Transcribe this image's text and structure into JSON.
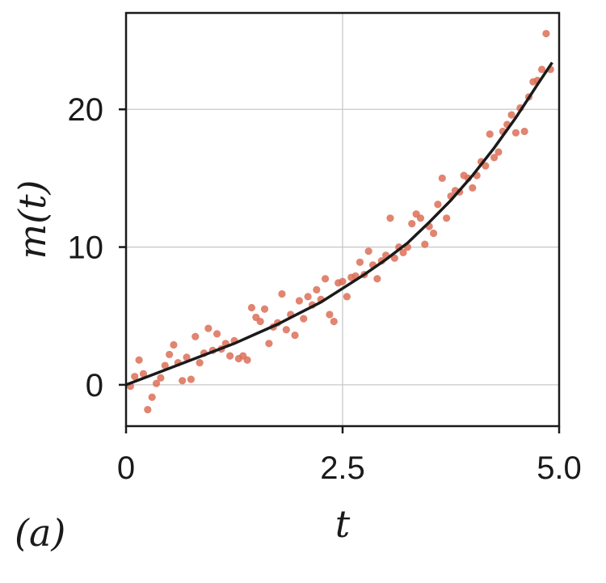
{
  "panel_label": "(a)",
  "chart_data": {
    "type": "scatter",
    "xlabel": "t",
    "ylabel": "m(t)",
    "xlim": [
      0,
      5.0
    ],
    "ylim": [
      -3,
      27
    ],
    "xticks": [
      0,
      2.5,
      5.0
    ],
    "xtick_labels": [
      "0",
      "2.5",
      "5.0"
    ],
    "yticks": [
      0,
      10,
      20
    ],
    "ytick_labels": [
      "0",
      "10",
      "20"
    ],
    "grid": true,
    "colors": {
      "points": "#dc6e57",
      "fit": "#1a1a1a"
    },
    "series": [
      {
        "type": "scatter",
        "x": [
          0.05,
          0.1,
          0.15,
          0.2,
          0.25,
          0.3,
          0.35,
          0.4,
          0.45,
          0.5,
          0.55,
          0.6,
          0.65,
          0.7,
          0.75,
          0.8,
          0.85,
          0.9,
          0.95,
          1.0,
          1.05,
          1.1,
          1.15,
          1.2,
          1.25,
          1.3,
          1.35,
          1.4,
          1.45,
          1.5,
          1.55,
          1.6,
          1.65,
          1.7,
          1.75,
          1.8,
          1.85,
          1.9,
          1.95,
          2.0,
          2.05,
          2.1,
          2.15,
          2.2,
          2.25,
          2.3,
          2.35,
          2.4,
          2.45,
          2.5,
          2.55,
          2.6,
          2.65,
          2.7,
          2.75,
          2.8,
          2.85,
          2.9,
          2.95,
          3.0,
          3.05,
          3.1,
          3.15,
          3.2,
          3.25,
          3.3,
          3.35,
          3.4,
          3.45,
          3.5,
          3.55,
          3.6,
          3.65,
          3.7,
          3.75,
          3.8,
          3.85,
          3.9,
          3.95,
          4.0,
          4.05,
          4.1,
          4.15,
          4.2,
          4.25,
          4.3,
          4.35,
          4.4,
          4.45,
          4.5,
          4.55,
          4.6,
          4.65,
          4.7,
          4.75,
          4.8,
          4.85,
          4.9
        ],
        "y": [
          -0.1,
          0.6,
          1.8,
          0.8,
          -1.8,
          -0.9,
          0.1,
          0.5,
          1.4,
          2.2,
          2.9,
          1.6,
          0.3,
          2.0,
          0.4,
          3.5,
          1.6,
          2.3,
          4.1,
          2.5,
          3.7,
          2.6,
          3.0,
          2.1,
          3.2,
          1.9,
          2.1,
          1.8,
          5.6,
          4.9,
          4.6,
          5.5,
          3.0,
          4.2,
          4.5,
          6.6,
          4.0,
          5.1,
          3.6,
          6.1,
          4.8,
          6.4,
          5.8,
          6.9,
          6.2,
          7.7,
          5.1,
          4.6,
          7.4,
          7.5,
          6.4,
          7.8,
          7.9,
          8.9,
          8.0,
          9.7,
          8.7,
          7.7,
          9.0,
          9.4,
          12.1,
          9.2,
          10.0,
          9.6,
          10.0,
          11.7,
          12.4,
          12.1,
          10.2,
          11.5,
          11.0,
          13.1,
          15.0,
          12.1,
          13.7,
          14.1,
          14.0,
          15.2,
          15.0,
          14.3,
          15.2,
          16.2,
          15.9,
          18.2,
          16.5,
          16.9,
          18.4,
          18.9,
          19.6,
          18.3,
          20.1,
          18.4,
          20.9,
          22.0,
          22.1,
          22.9,
          25.5,
          22.9
        ]
      },
      {
        "type": "line",
        "x": [
          0.0,
          0.25,
          0.5,
          0.75,
          1.0,
          1.25,
          1.5,
          1.75,
          2.0,
          2.25,
          2.5,
          2.75,
          3.0,
          3.25,
          3.5,
          3.75,
          4.0,
          4.25,
          4.5,
          4.75,
          4.92
        ],
        "y": [
          0.0,
          0.6,
          1.2,
          1.8,
          2.4,
          3.0,
          3.7,
          4.4,
          5.2,
          6.0,
          7.0,
          8.0,
          9.1,
          10.3,
          11.8,
          13.4,
          15.2,
          17.2,
          19.4,
          21.8,
          23.4
        ]
      }
    ]
  }
}
